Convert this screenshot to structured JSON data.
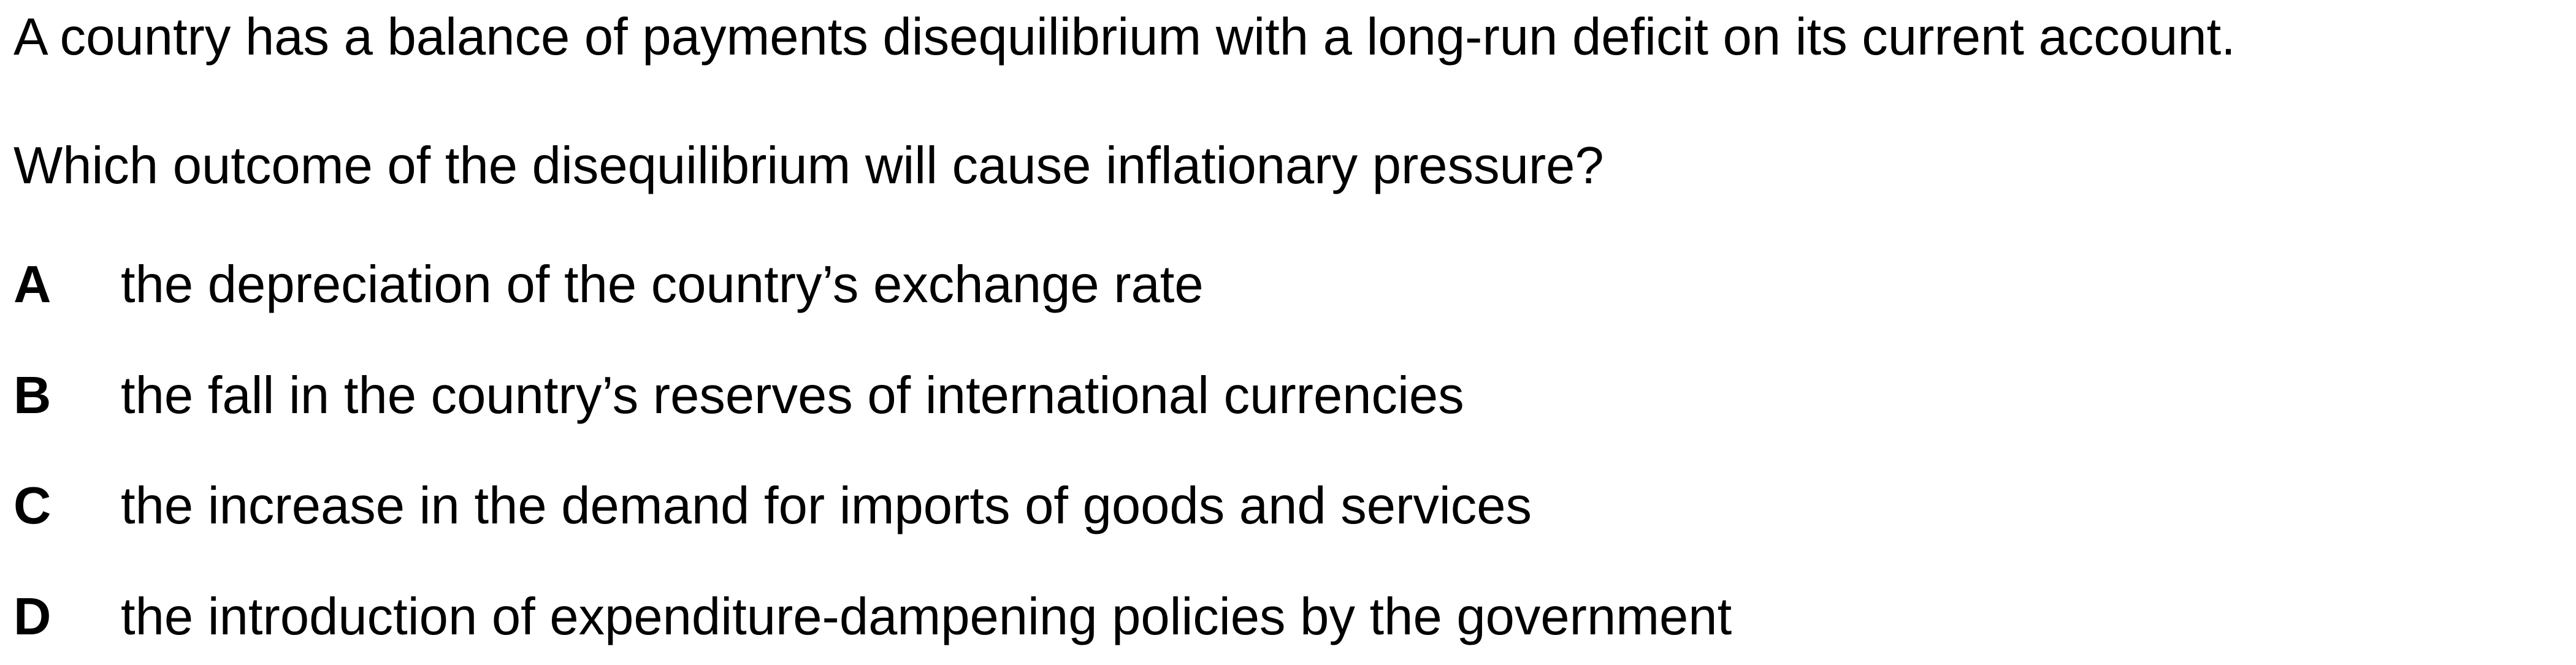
{
  "stem": "A country has a balance of payments disequilibrium with a long-run deficit on its current account.",
  "question": "Which outcome of the disequilibrium will cause inflationary pressure?",
  "options": [
    {
      "letter": "A",
      "text": "the depreciation of the country’s exchange rate"
    },
    {
      "letter": "B",
      "text": "the fall in the country’s reserves of international currencies"
    },
    {
      "letter": "C",
      "text": "the increase in the demand for imports of goods and services"
    },
    {
      "letter": "D",
      "text": "the introduction of expenditure-dampening policies by the government"
    }
  ]
}
